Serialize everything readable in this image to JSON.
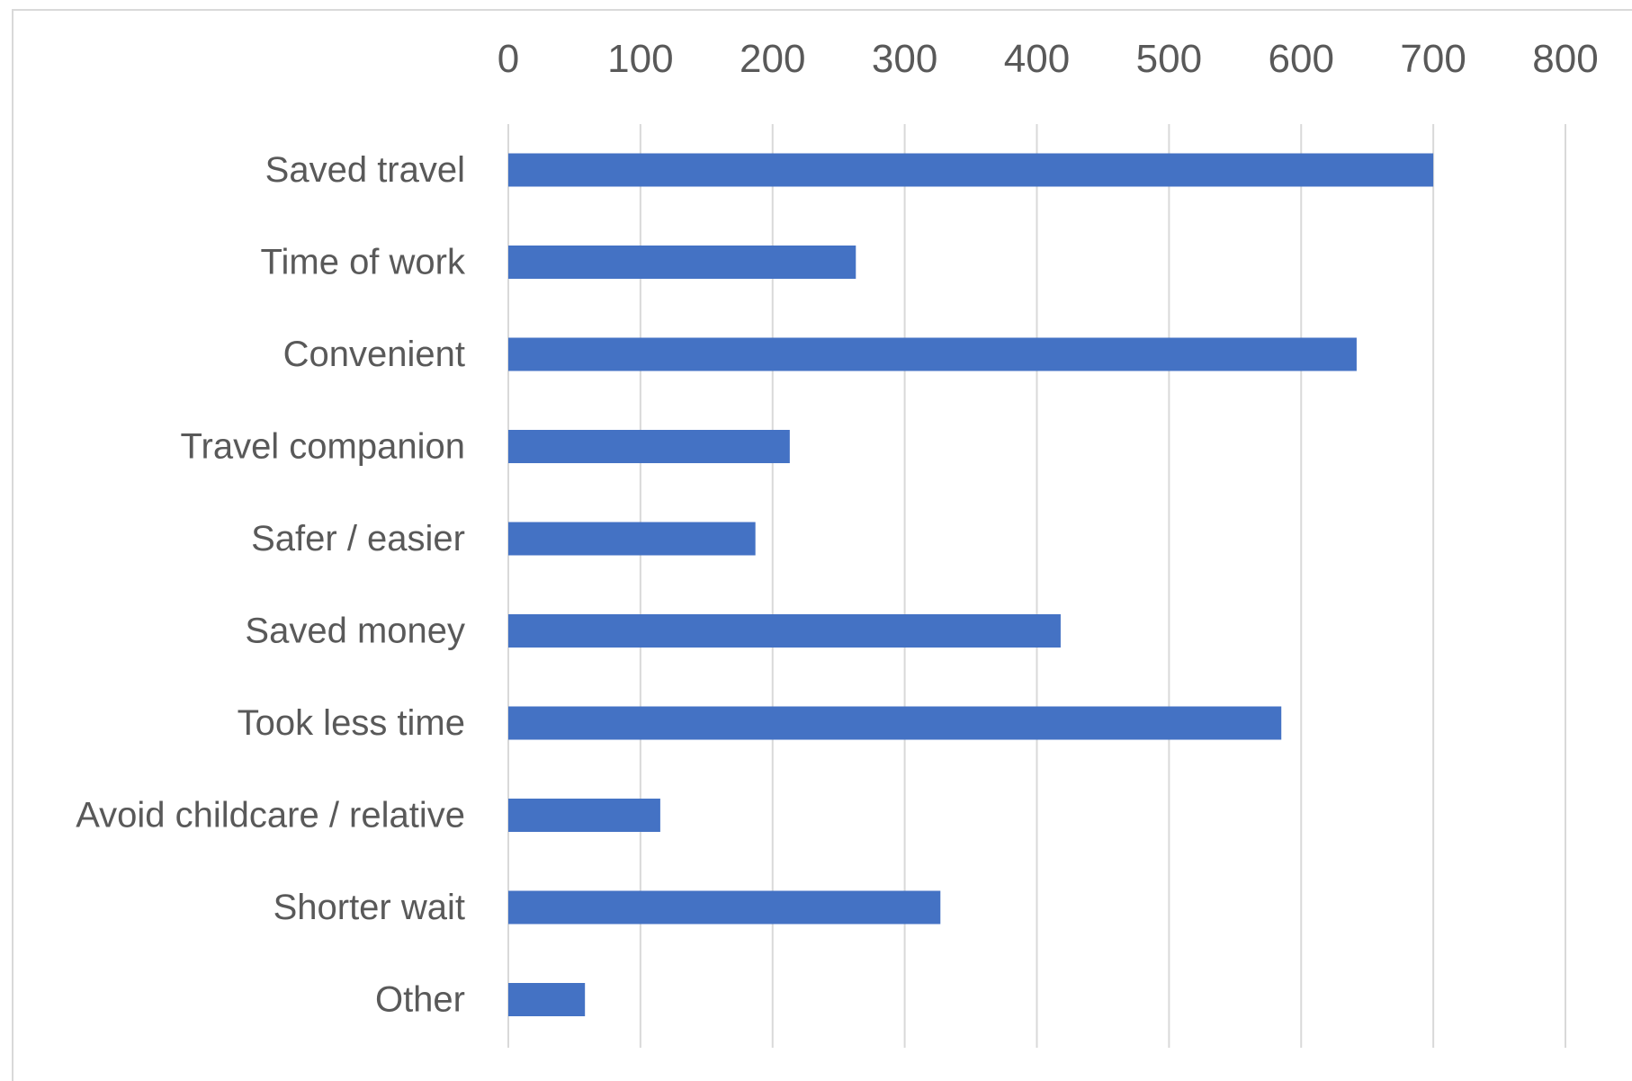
{
  "chart_data": {
    "type": "bar",
    "orientation": "horizontal",
    "title": "",
    "xlabel": "",
    "ylabel": "",
    "categories": [
      "Saved travel",
      "Time of work",
      "Convenient",
      "Travel companion",
      "Safer / easier",
      "Saved money",
      "Took less time",
      "Avoid childcare / relative",
      "Shorter wait",
      "Other"
    ],
    "values": [
      700,
      263,
      642,
      213,
      187,
      418,
      585,
      115,
      327,
      58
    ],
    "xlim": [
      0,
      800
    ],
    "ticks": [
      0,
      100,
      200,
      300,
      400,
      500,
      600,
      700,
      800
    ],
    "tick_labels": [
      "0",
      "100",
      "200",
      "300",
      "400",
      "500",
      "600",
      "700",
      "800"
    ],
    "x_axis_position": "top",
    "grid": true,
    "legend": "none",
    "bar_color": "#4472c4",
    "gridline_color": "#d9d9d9",
    "label_color": "#595959"
  }
}
